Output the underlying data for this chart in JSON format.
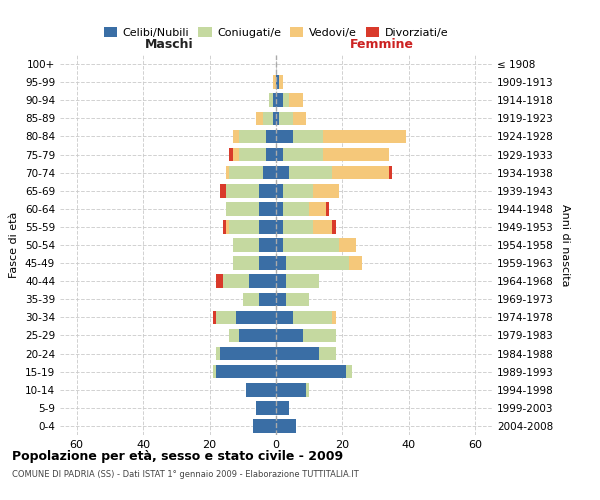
{
  "age_groups": [
    "0-4",
    "5-9",
    "10-14",
    "15-19",
    "20-24",
    "25-29",
    "30-34",
    "35-39",
    "40-44",
    "45-49",
    "50-54",
    "55-59",
    "60-64",
    "65-69",
    "70-74",
    "75-79",
    "80-84",
    "85-89",
    "90-94",
    "95-99",
    "100+"
  ],
  "birth_years": [
    "2004-2008",
    "1999-2003",
    "1994-1998",
    "1989-1993",
    "1984-1988",
    "1979-1983",
    "1974-1978",
    "1969-1973",
    "1964-1968",
    "1959-1963",
    "1954-1958",
    "1949-1953",
    "1944-1948",
    "1939-1943",
    "1934-1938",
    "1929-1933",
    "1924-1928",
    "1919-1923",
    "1914-1918",
    "1909-1913",
    "≤ 1908"
  ],
  "males": {
    "celibi": [
      7,
      6,
      9,
      18,
      17,
      11,
      12,
      5,
      8,
      5,
      5,
      5,
      5,
      5,
      4,
      3,
      3,
      1,
      1,
      0,
      0
    ],
    "coniugati": [
      0,
      0,
      0,
      1,
      1,
      3,
      6,
      5,
      8,
      8,
      8,
      9,
      10,
      10,
      10,
      8,
      8,
      3,
      1,
      0,
      0
    ],
    "vedovi": [
      0,
      0,
      0,
      0,
      0,
      0,
      0,
      0,
      0,
      0,
      0,
      1,
      0,
      0,
      1,
      2,
      2,
      2,
      0,
      1,
      0
    ],
    "divorziati": [
      0,
      0,
      0,
      0,
      0,
      0,
      1,
      0,
      2,
      0,
      0,
      1,
      0,
      2,
      0,
      1,
      0,
      0,
      0,
      0,
      0
    ]
  },
  "females": {
    "nubili": [
      6,
      4,
      9,
      21,
      13,
      8,
      5,
      3,
      3,
      3,
      2,
      2,
      2,
      2,
      4,
      2,
      5,
      1,
      2,
      1,
      0
    ],
    "coniugate": [
      0,
      0,
      1,
      2,
      5,
      10,
      12,
      7,
      10,
      19,
      17,
      9,
      8,
      9,
      13,
      12,
      9,
      4,
      2,
      0,
      0
    ],
    "vedove": [
      0,
      0,
      0,
      0,
      0,
      0,
      1,
      0,
      0,
      4,
      5,
      6,
      5,
      8,
      17,
      20,
      25,
      4,
      4,
      1,
      0
    ],
    "divorziate": [
      0,
      0,
      0,
      0,
      0,
      0,
      0,
      0,
      0,
      0,
      0,
      1,
      1,
      0,
      1,
      0,
      0,
      0,
      0,
      0,
      0
    ]
  },
  "colors": {
    "celibi_nubili": "#3a6ea5",
    "coniugati": "#c5d9a0",
    "vedovi": "#f5c87a",
    "divorziati": "#d93a2b"
  },
  "xlim": 65,
  "title": "Popolazione per età, sesso e stato civile - 2009",
  "subtitle": "COMUNE DI PADRIA (SS) - Dati ISTAT 1° gennaio 2009 - Elaborazione TUTTITALIA.IT",
  "ylabel_left": "Fasce di età",
  "ylabel_right": "Anni di nascita",
  "xlabel_left": "Maschi",
  "xlabel_right": "Femmine",
  "legend_labels": [
    "Celibi/Nubili",
    "Coniugati/e",
    "Vedovi/e",
    "Divorziati/e"
  ],
  "background_color": "#ffffff",
  "grid_color": "#cccccc"
}
